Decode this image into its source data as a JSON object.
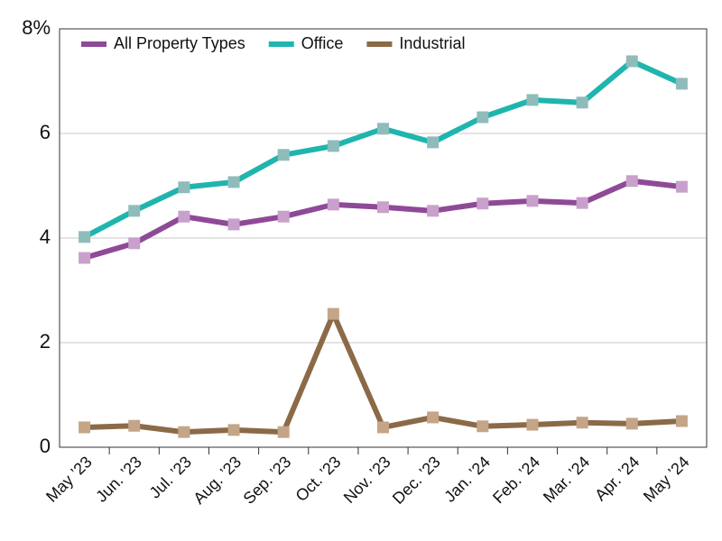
{
  "chart_data": {
    "type": "line",
    "categories": [
      "May ’23",
      "Jun. ’23",
      "Jul. ’23",
      "Aug. ’23",
      "Sep. ’23",
      "Oct. ’23",
      "Nov. ’23",
      "Dec. ’23",
      "Jan. ’24",
      "Feb. ’24",
      "Mar. ’24",
      "Apr. ’24",
      "May ’24"
    ],
    "series": [
      {
        "name": "All Property Types",
        "color": "#8e4a97",
        "marker_color": "#c9a0cc",
        "values": [
          3.62,
          3.9,
          4.41,
          4.26,
          4.41,
          4.64,
          4.59,
          4.52,
          4.66,
          4.71,
          4.67,
          5.09,
          4.98
        ]
      },
      {
        "name": "Office",
        "color": "#1fb5ae",
        "marker_color": "#8fbcbb",
        "values": [
          4.02,
          4.52,
          4.97,
          5.07,
          5.59,
          5.76,
          6.09,
          5.83,
          6.31,
          6.64,
          6.59,
          7.38,
          6.95
        ]
      },
      {
        "name": "Industrial",
        "color": "#8b6a47",
        "marker_color": "#c4a587",
        "values": [
          0.38,
          0.41,
          0.29,
          0.33,
          0.29,
          2.55,
          0.38,
          0.57,
          0.4,
          0.43,
          0.47,
          0.45,
          0.5
        ]
      }
    ],
    "ylim": [
      0,
      8
    ],
    "yticks": [
      0,
      2,
      4,
      6,
      {
        "value": 8,
        "label": "8%"
      }
    ],
    "grid": true,
    "legend": "upper-left"
  }
}
